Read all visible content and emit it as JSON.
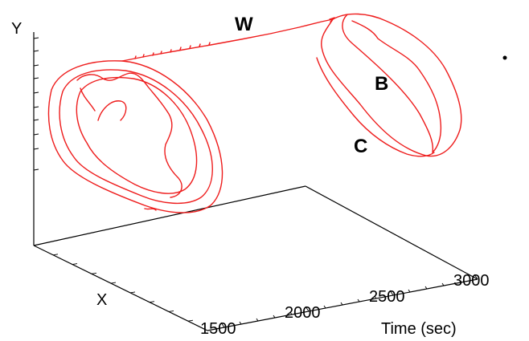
{
  "chart_data": {
    "type": "line",
    "projection": "3d",
    "axes": {
      "x": {
        "label": "X"
      },
      "y": {
        "label": "Y"
      },
      "time": {
        "label": "Time (sec)",
        "ticks": [
          1500,
          2000,
          2500,
          3000
        ]
      }
    },
    "annotations": [
      "W",
      "B",
      "C"
    ],
    "grid": false,
    "legend": "none",
    "series_color": "#ee1c1c"
  }
}
